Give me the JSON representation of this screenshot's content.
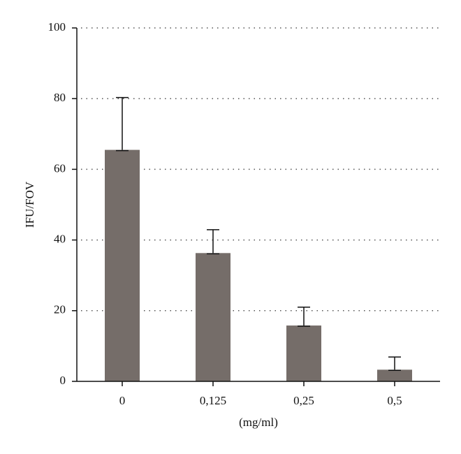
{
  "chart_data": {
    "type": "bar",
    "ylabel": "IFU/FOV",
    "xlabel": "(mg/ml)",
    "categories": [
      "0",
      "0,125",
      "0,25",
      "0,5"
    ],
    "values": [
      65.5,
      36.3,
      15.8,
      3.3
    ],
    "errors": [
      14.8,
      6.6,
      5.2,
      3.6
    ],
    "color": "#756d69",
    "ylim": [
      0,
      100
    ],
    "yticks": [
      0,
      20,
      40,
      60,
      80,
      100
    ],
    "grid": true
  }
}
